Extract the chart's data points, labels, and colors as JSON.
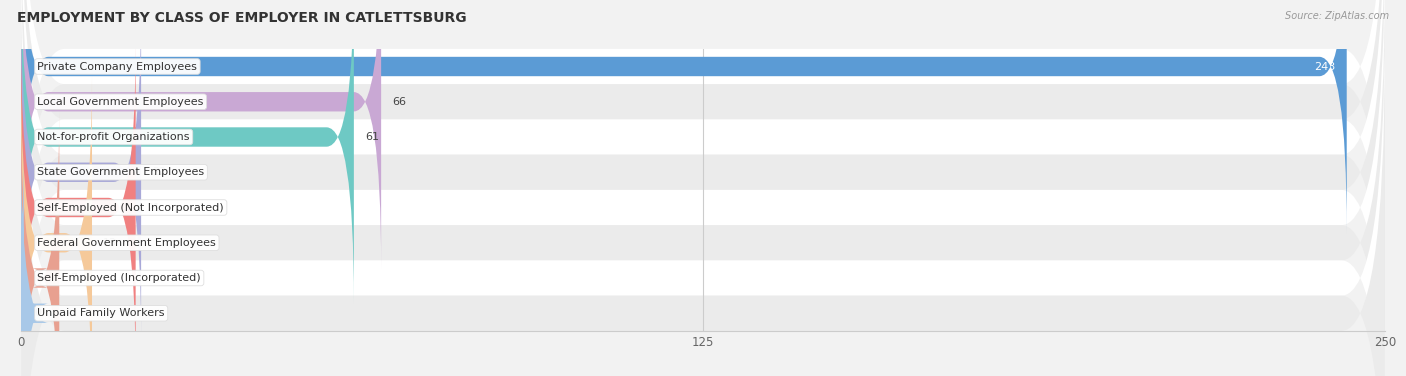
{
  "title": "EMPLOYMENT BY CLASS OF EMPLOYER IN CATLETTSBURG",
  "source": "Source: ZipAtlas.com",
  "categories": [
    "Private Company Employees",
    "Local Government Employees",
    "Not-for-profit Organizations",
    "State Government Employees",
    "Self-Employed (Not Incorporated)",
    "Federal Government Employees",
    "Self-Employed (Incorporated)",
    "Unpaid Family Workers"
  ],
  "values": [
    243,
    66,
    61,
    22,
    21,
    13,
    7,
    0
  ],
  "bar_colors": [
    "#5b9bd5",
    "#c9a8d4",
    "#6ec9c4",
    "#a8a8d8",
    "#f08080",
    "#f5c99a",
    "#e8a090",
    "#a8c8e8"
  ],
  "xlim": [
    0,
    250
  ],
  "xticks": [
    0,
    125,
    250
  ],
  "background_color": "#f2f2f2",
  "title_fontsize": 10,
  "label_fontsize": 8,
  "value_fontsize": 8,
  "bar_height": 0.55,
  "figsize": [
    14.06,
    3.76
  ],
  "dpi": 100
}
